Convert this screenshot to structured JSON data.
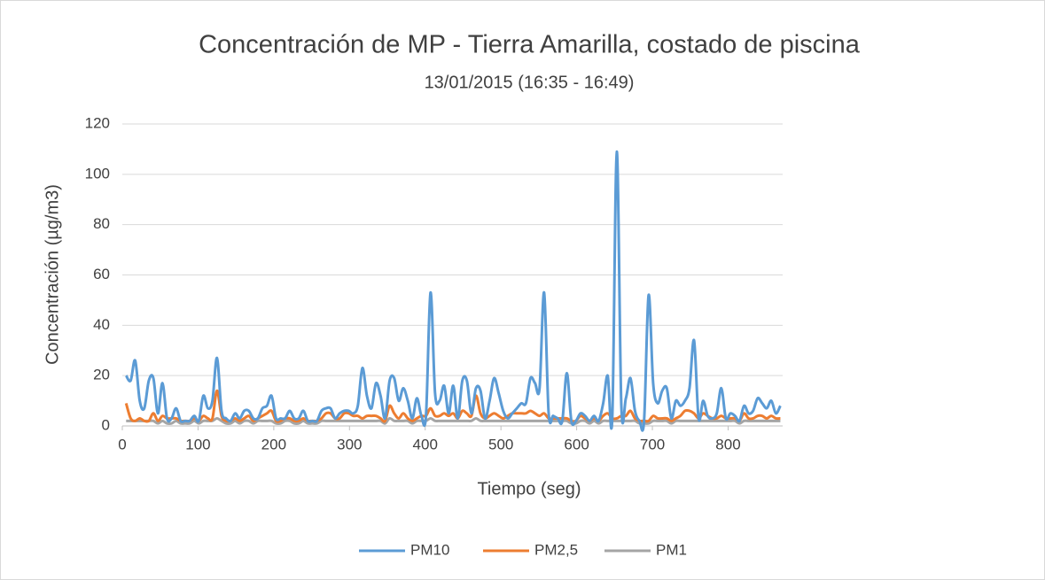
{
  "chart_data": {
    "type": "line",
    "title": "Concentración de MP - Tierra Amarilla, costado de piscina",
    "subtitle": "13/01/2015 (16:35 - 16:49)",
    "x_label": "Tiempo (seg)",
    "y_label": "Concentración (µg/m3)",
    "xlim": [
      0,
      872
    ],
    "xticks": [
      0,
      100,
      200,
      300,
      400,
      500,
      600,
      700,
      800
    ],
    "ylim": [
      0,
      120
    ],
    "yticks": [
      0,
      20,
      40,
      60,
      80,
      100,
      120
    ],
    "grid": true,
    "legend": "bottom",
    "x": [
      5,
      11,
      17,
      23,
      29,
      35,
      41,
      47,
      53,
      59,
      65,
      71,
      77,
      83,
      89,
      95,
      101,
      107,
      113,
      119,
      125,
      131,
      137,
      143,
      149,
      155,
      161,
      167,
      173,
      179,
      185,
      191,
      197,
      203,
      209,
      215,
      221,
      227,
      233,
      239,
      245,
      251,
      257,
      263,
      269,
      275,
      281,
      287,
      293,
      299,
      305,
      311,
      317,
      323,
      329,
      335,
      341,
      347,
      353,
      359,
      365,
      371,
      377,
      383,
      389,
      395,
      401,
      407,
      413,
      419,
      425,
      431,
      437,
      443,
      449,
      455,
      461,
      467,
      473,
      479,
      485,
      491,
      497,
      503,
      509,
      515,
      521,
      527,
      533,
      539,
      545,
      551,
      557,
      563,
      569,
      575,
      581,
      587,
      593,
      599,
      605,
      611,
      617,
      623,
      629,
      635,
      641,
      647,
      653,
      659,
      665,
      671,
      677,
      683,
      689,
      695,
      701,
      707,
      713,
      719,
      725,
      731,
      737,
      743,
      749,
      755,
      761,
      767,
      773,
      779,
      785,
      791,
      797,
      803,
      809,
      815,
      821,
      827,
      833,
      839,
      845,
      851,
      857,
      863,
      869
    ],
    "series": [
      {
        "name": "PM10",
        "color": "#5b9bd5",
        "values": [
          20,
          18,
          26,
          10,
          7,
          18,
          19,
          5,
          17,
          3,
          3,
          7,
          2,
          2,
          2,
          4,
          2,
          12,
          7,
          10,
          27,
          6,
          3,
          2,
          5,
          3,
          6,
          6,
          3,
          3,
          7,
          8,
          12,
          3,
          3,
          3,
          6,
          3,
          3,
          6,
          2,
          2,
          2,
          6,
          7,
          7,
          3,
          5,
          6,
          6,
          5,
          8,
          23,
          12,
          7,
          17,
          12,
          3,
          18,
          19,
          10,
          15,
          10,
          3,
          11,
          4,
          4,
          53,
          13,
          10,
          16,
          5,
          16,
          3,
          18,
          18,
          5,
          15,
          14,
          3,
          10,
          19,
          13,
          6,
          3,
          5,
          7,
          9,
          9,
          19,
          17,
          15,
          53,
          5,
          4,
          3,
          2,
          21,
          2,
          2,
          5,
          4,
          2,
          4,
          2,
          9,
          20,
          3,
          109,
          8,
          11,
          19,
          6,
          2,
          2,
          52,
          17,
          9,
          14,
          15,
          3,
          10,
          8,
          10,
          15,
          34,
          3,
          10,
          4,
          3,
          5,
          15,
          3,
          5,
          4,
          2,
          8,
          5,
          6,
          11,
          9,
          7,
          10,
          5,
          8
        ]
      },
      {
        "name": "PM2,5",
        "color": "#ed7d31",
        "values": [
          9,
          3,
          2,
          3,
          2,
          2,
          5,
          2,
          4,
          3,
          3,
          3,
          2,
          2,
          2,
          3,
          2,
          4,
          3,
          3,
          14,
          4,
          2,
          2,
          3,
          2,
          3,
          4,
          2,
          3,
          4,
          5,
          6,
          2,
          2,
          3,
          3,
          2,
          2,
          3,
          2,
          2,
          2,
          3,
          5,
          5,
          3,
          3,
          5,
          5,
          4,
          4,
          3,
          4,
          4,
          4,
          3,
          2,
          8,
          5,
          3,
          5,
          3,
          2,
          3,
          4,
          4,
          7,
          4,
          4,
          5,
          4,
          5,
          3,
          6,
          5,
          4,
          12,
          5,
          3,
          4,
          5,
          4,
          3,
          4,
          5,
          5,
          5,
          5,
          6,
          5,
          4,
          5,
          3,
          3,
          3,
          3,
          3,
          2,
          2,
          4,
          3,
          2,
          3,
          2,
          4,
          5,
          3,
          3,
          4,
          4,
          6,
          3,
          2,
          2,
          2,
          4,
          3,
          3,
          3,
          2,
          3,
          4,
          6,
          6,
          5,
          3,
          5,
          4,
          3,
          3,
          4,
          3,
          3,
          3,
          2,
          5,
          3,
          3,
          4,
          4,
          3,
          4,
          3,
          3
        ]
      },
      {
        "name": "PM1",
        "color": "#a5a5a5",
        "values": [
          2,
          2,
          2,
          2,
          2,
          2,
          2,
          1,
          2,
          1,
          1,
          2,
          1,
          1,
          1,
          2,
          1,
          2,
          2,
          2,
          3,
          2,
          1,
          1,
          2,
          1,
          2,
          2,
          1,
          2,
          2,
          2,
          2,
          1,
          1,
          2,
          2,
          1,
          1,
          2,
          1,
          1,
          1,
          2,
          2,
          2,
          2,
          2,
          2,
          2,
          2,
          2,
          2,
          2,
          2,
          2,
          2,
          1,
          3,
          2,
          2,
          2,
          2,
          1,
          2,
          2,
          2,
          3,
          2,
          2,
          2,
          2,
          2,
          2,
          2,
          2,
          2,
          3,
          2,
          2,
          2,
          2,
          2,
          2,
          2,
          2,
          2,
          2,
          2,
          2,
          2,
          2,
          2,
          2,
          2,
          2,
          2,
          2,
          1,
          1,
          2,
          2,
          1,
          2,
          1,
          2,
          2,
          2,
          2,
          2,
          2,
          2,
          2,
          1,
          1,
          1,
          2,
          2,
          2,
          2,
          1,
          2,
          2,
          2,
          2,
          2,
          2,
          2,
          2,
          2,
          2,
          2,
          2,
          2,
          2,
          1,
          2,
          2,
          2,
          2,
          2,
          2,
          2,
          2,
          2
        ]
      }
    ]
  }
}
